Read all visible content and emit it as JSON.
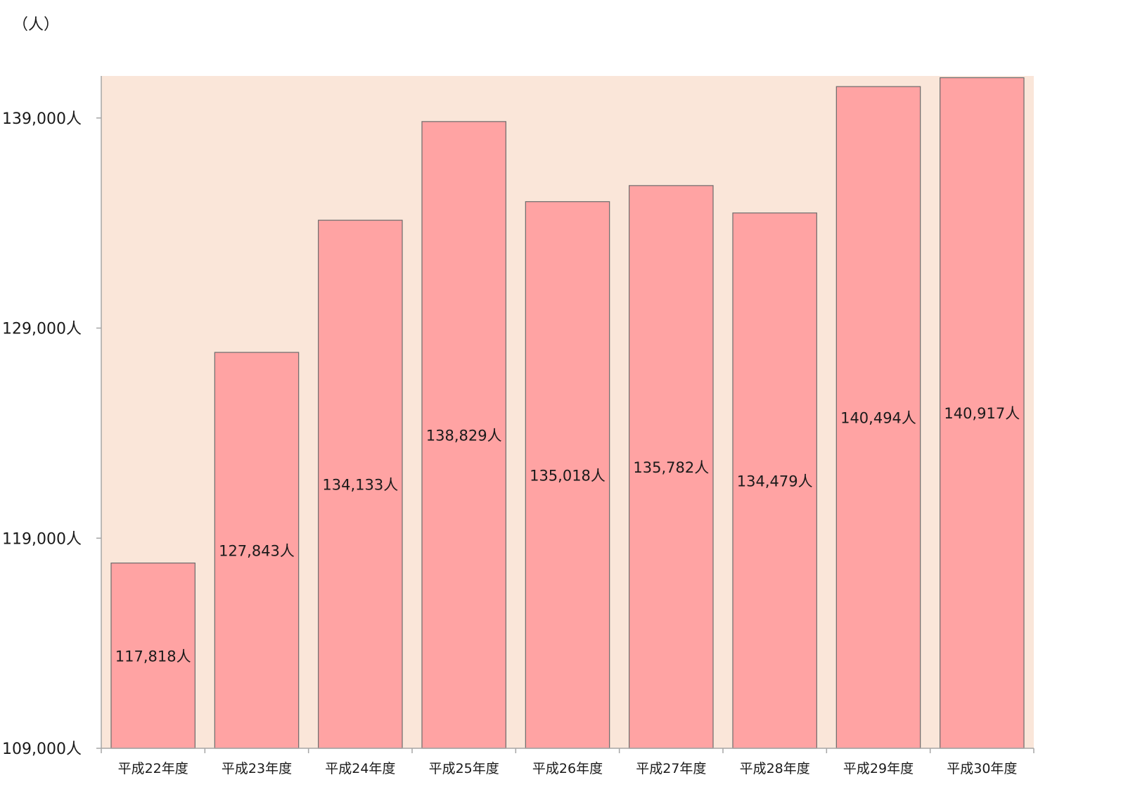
{
  "chart_data": {
    "type": "bar",
    "unit_label": "（人）",
    "categories": [
      "平成22年度",
      "平成23年度",
      "平成24年度",
      "平成25年度",
      "平成26年度",
      "平成27年度",
      "平成28年度",
      "平成29年度",
      "平成30年度"
    ],
    "values": [
      117818,
      127843,
      134133,
      138829,
      135018,
      135782,
      134479,
      140494,
      140917
    ],
    "data_labels": [
      "117,818人",
      "127,843人",
      "134,133人",
      "138,829人",
      "135,018人",
      "135,782人",
      "134,479人",
      "140,494人",
      "140,917人"
    ],
    "yticks": [
      109000,
      119000,
      129000,
      139000
    ],
    "ytick_labels": [
      "109,000人",
      "119,000人",
      "129,000人",
      "139,000人"
    ],
    "ylim": [
      109000,
      141000
    ],
    "title": "",
    "xlabel": "",
    "ylabel": "",
    "grid": false,
    "legend": "none",
    "colors": {
      "plot_background": "#FAE6D9",
      "bar_fill": "#FFA3A3",
      "bar_stroke": "#6b6b6b",
      "axis": "#a6a6a6"
    }
  }
}
